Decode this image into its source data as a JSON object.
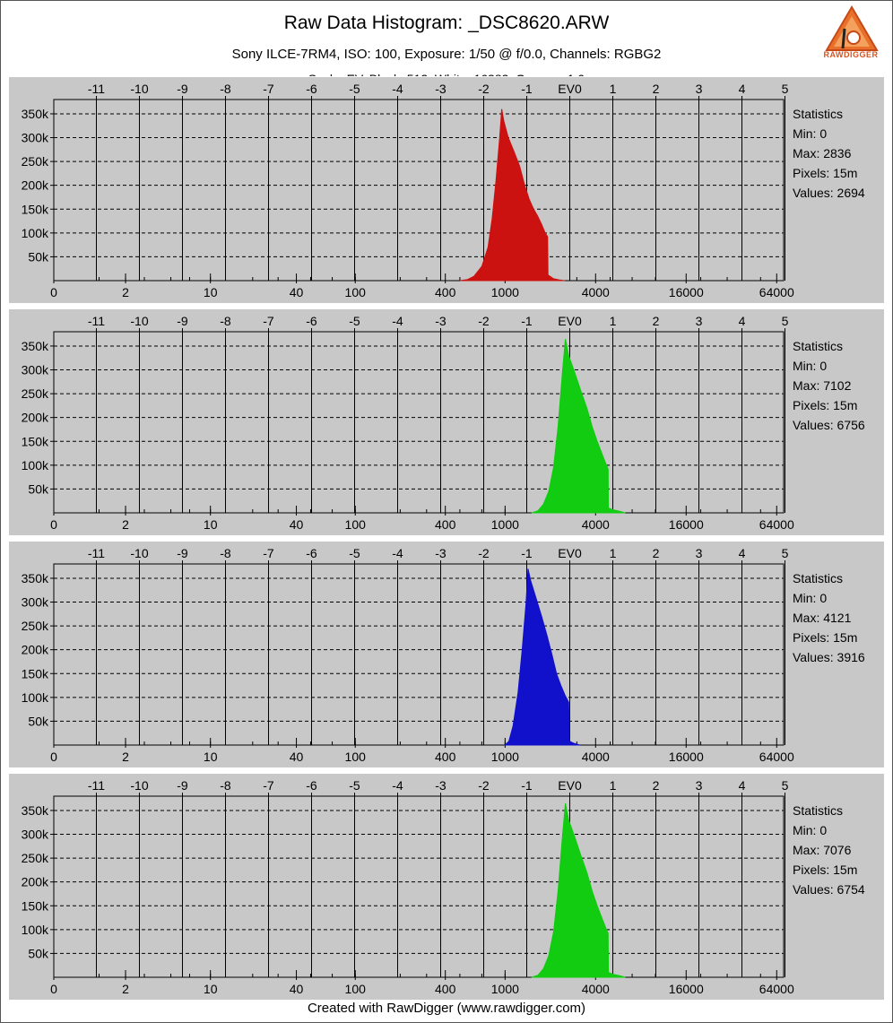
{
  "header": {
    "title": "Raw Data Histogram: _DSC8620.ARW",
    "subtitle": "Sony ILCE-7RM4, ISO: 100, Exposure: 1/50 @ f/0.0, Channels: RGBG2",
    "logo_text": "RAWDIGGER"
  },
  "footer": {
    "text": "Created with RawDigger (www.rawdigger.com)"
  },
  "stats_title": "Statistics",
  "chart_data": [
    {
      "type": "area",
      "channel": "R",
      "color": "#cc1111",
      "top_axis": [
        "-11",
        "-10",
        "-9",
        "-8",
        "-7",
        "-6",
        "-5",
        "-4",
        "-3",
        "-2",
        "-1",
        "EV0",
        "1",
        "2",
        "3",
        "4",
        "5"
      ],
      "bottom_axis": [
        "0",
        "2",
        "10",
        "40",
        "100",
        "400",
        "1000",
        "4000",
        "16000",
        "64000"
      ],
      "y_ticks": [
        "350k",
        "300k",
        "250k",
        "200k",
        "150k",
        "100k",
        "50k"
      ],
      "ylim": [
        0,
        380000
      ],
      "xscale": "log",
      "stats": {
        "min": "Min: 0",
        "max": "Max: 2836",
        "pixels": "Pixels: 15m",
        "values": "Values: 2694"
      },
      "points": [
        [
          500,
          0
        ],
        [
          560,
          2000
        ],
        [
          620,
          9000
        ],
        [
          700,
          30000
        ],
        [
          770,
          70000
        ],
        [
          820,
          130000
        ],
        [
          870,
          210000
        ],
        [
          920,
          300000
        ],
        [
          950,
          360000
        ],
        [
          980,
          335000
        ],
        [
          1050,
          300000
        ],
        [
          1150,
          270000
        ],
        [
          1250,
          240000
        ],
        [
          1350,
          200000
        ],
        [
          1450,
          170000
        ],
        [
          1550,
          150000
        ],
        [
          1650,
          135000
        ],
        [
          1750,
          118000
        ],
        [
          1850,
          100000
        ],
        [
          1920,
          92000
        ],
        [
          1930,
          12000
        ],
        [
          2100,
          4000
        ],
        [
          2300,
          1500
        ],
        [
          2500,
          0
        ]
      ]
    },
    {
      "type": "area",
      "channel": "G",
      "color": "#11cc11",
      "top_axis": [
        "-11",
        "-10",
        "-9",
        "-8",
        "-7",
        "-6",
        "-5",
        "-4",
        "-3",
        "-2",
        "-1",
        "EV0",
        "1",
        "2",
        "3",
        "4",
        "5"
      ],
      "bottom_axis": [
        "0",
        "2",
        "10",
        "40",
        "100",
        "400",
        "1000",
        "4000",
        "16000",
        "64000"
      ],
      "y_ticks": [
        "350k",
        "300k",
        "250k",
        "200k",
        "150k",
        "100k",
        "50k"
      ],
      "ylim": [
        0,
        380000
      ],
      "xscale": "log",
      "stats": {
        "min": "Min: 0",
        "max": "Max: 7102",
        "pixels": "Pixels: 15m",
        "values": "Values: 6756"
      },
      "points": [
        [
          1500,
          0
        ],
        [
          1650,
          4000
        ],
        [
          1800,
          18000
        ],
        [
          1950,
          45000
        ],
        [
          2100,
          95000
        ],
        [
          2250,
          180000
        ],
        [
          2400,
          290000
        ],
        [
          2520,
          365000
        ],
        [
          2650,
          330000
        ],
        [
          2900,
          295000
        ],
        [
          3200,
          255000
        ],
        [
          3500,
          220000
        ],
        [
          3800,
          180000
        ],
        [
          4100,
          150000
        ],
        [
          4400,
          125000
        ],
        [
          4700,
          102000
        ],
        [
          4850,
          92000
        ],
        [
          4870,
          10000
        ],
        [
          5300,
          6000
        ],
        [
          5800,
          3000
        ],
        [
          6300,
          0
        ]
      ]
    },
    {
      "type": "area",
      "channel": "B",
      "color": "#1111cc",
      "top_axis": [
        "-11",
        "-10",
        "-9",
        "-8",
        "-7",
        "-6",
        "-5",
        "-4",
        "-3",
        "-2",
        "-1",
        "EV0",
        "1",
        "2",
        "3",
        "4",
        "5"
      ],
      "bottom_axis": [
        "0",
        "2",
        "10",
        "40",
        "100",
        "400",
        "1000",
        "4000",
        "16000",
        "64000"
      ],
      "y_ticks": [
        "350k",
        "300k",
        "250k",
        "200k",
        "150k",
        "100k",
        "50k"
      ],
      "ylim": [
        0,
        380000
      ],
      "xscale": "log",
      "stats": {
        "min": "Min: 0",
        "max": "Max: 4121",
        "pixels": "Pixels: 15m",
        "values": "Values: 3916"
      },
      "points": [
        [
          1000,
          0
        ],
        [
          1060,
          8000
        ],
        [
          1130,
          40000
        ],
        [
          1220,
          110000
        ],
        [
          1300,
          200000
        ],
        [
          1380,
          300000
        ],
        [
          1420,
          370000
        ],
        [
          1480,
          345000
        ],
        [
          1600,
          310000
        ],
        [
          1750,
          270000
        ],
        [
          1900,
          230000
        ],
        [
          2050,
          190000
        ],
        [
          2200,
          150000
        ],
        [
          2350,
          125000
        ],
        [
          2500,
          105000
        ],
        [
          2650,
          90000
        ],
        [
          2680,
          8000
        ],
        [
          2900,
          3000
        ],
        [
          3150,
          0
        ]
      ]
    },
    {
      "type": "area",
      "channel": "G2",
      "color": "#11cc11",
      "top_axis": [
        "-11",
        "-10",
        "-9",
        "-8",
        "-7",
        "-6",
        "-5",
        "-4",
        "-3",
        "-2",
        "-1",
        "EV0",
        "1",
        "2",
        "3",
        "4",
        "5"
      ],
      "bottom_axis": [
        "0",
        "2",
        "10",
        "40",
        "100",
        "400",
        "1000",
        "4000",
        "16000",
        "64000"
      ],
      "y_ticks": [
        "350k",
        "300k",
        "250k",
        "200k",
        "150k",
        "100k",
        "50k"
      ],
      "ylim": [
        0,
        380000
      ],
      "xscale": "log",
      "stats": {
        "min": "Min: 0",
        "max": "Max: 7076",
        "pixels": "Pixels: 15m",
        "values": "Values: 6754"
      },
      "points": [
        [
          1500,
          0
        ],
        [
          1650,
          4000
        ],
        [
          1800,
          18000
        ],
        [
          1950,
          45000
        ],
        [
          2100,
          95000
        ],
        [
          2250,
          180000
        ],
        [
          2400,
          290000
        ],
        [
          2520,
          365000
        ],
        [
          2650,
          330000
        ],
        [
          2900,
          295000
        ],
        [
          3200,
          255000
        ],
        [
          3500,
          220000
        ],
        [
          3800,
          180000
        ],
        [
          4100,
          150000
        ],
        [
          4400,
          125000
        ],
        [
          4700,
          102000
        ],
        [
          4850,
          92000
        ],
        [
          4870,
          10000
        ],
        [
          5300,
          6000
        ],
        [
          5800,
          3000
        ],
        [
          6300,
          0
        ]
      ]
    }
  ]
}
